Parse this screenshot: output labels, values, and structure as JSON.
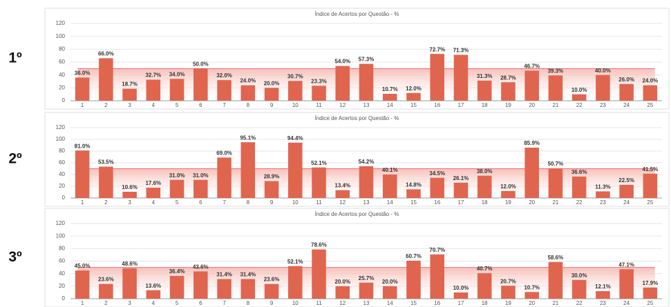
{
  "row_labels": [
    "1º",
    "2º",
    "3º"
  ],
  "chart_data": [
    {
      "type": "bar",
      "title": "Índice de Acertos por Questão - %",
      "color": "#e0654f",
      "reference_line": 50,
      "ylim": [
        0,
        120
      ],
      "yticks": [
        0,
        20,
        40,
        60,
        80,
        100,
        120
      ],
      "grid": true,
      "categories": [
        "1",
        "2",
        "3",
        "4",
        "5",
        "6",
        "7",
        "8",
        "9",
        "10",
        "11",
        "12",
        "13",
        "14",
        "15",
        "16",
        "17",
        "18",
        "19",
        "20",
        "21",
        "22",
        "23",
        "24",
        "25"
      ],
      "values": [
        36.0,
        66.0,
        18.7,
        32.7,
        34.0,
        50.0,
        32.0,
        24.0,
        20.0,
        30.7,
        23.3,
        54.0,
        57.3,
        10.7,
        12.0,
        72.7,
        71.3,
        31.3,
        28.7,
        46.7,
        39.3,
        10.0,
        40.0,
        26.0,
        24.0
      ],
      "value_labels": [
        "36.0%",
        "66.0%",
        "18.7%",
        "32.7%",
        "34.0%",
        "50.0%",
        "32.0%",
        "24.0%",
        "20.0%",
        "30.7%",
        "23.3%",
        "54.0%",
        "57.3%",
        "10.7%",
        "12.0%",
        "72.7%",
        "71.3%",
        "31.3%",
        "28.7%",
        "46.7%",
        "39.3%",
        "10.0%",
        "40.0%",
        "26.0%",
        "24.0%"
      ]
    },
    {
      "type": "bar",
      "title": "Índice de Acertos por Questão - %",
      "color": "#e0654f",
      "reference_line": 50,
      "ylim": [
        0,
        120
      ],
      "yticks": [
        0,
        20,
        40,
        60,
        80,
        100,
        120
      ],
      "grid": true,
      "categories": [
        "1",
        "2",
        "3",
        "4",
        "5",
        "6",
        "7",
        "8",
        "9",
        "10",
        "11",
        "12",
        "13",
        "14",
        "15",
        "16",
        "17",
        "18",
        "19",
        "20",
        "21",
        "22",
        "23",
        "24",
        "25"
      ],
      "values": [
        81.0,
        53.5,
        10.6,
        17.6,
        31.0,
        31.0,
        69.0,
        95.1,
        28.9,
        94.4,
        52.1,
        13.4,
        54.2,
        40.1,
        14.8,
        34.5,
        26.1,
        38.0,
        12.0,
        85.9,
        50.7,
        36.6,
        11.3,
        22.5,
        41.5
      ],
      "value_labels": [
        "81.0%",
        "53.5%",
        "10.6%",
        "17.6%",
        "31.0%",
        "31.0%",
        "69.0%",
        "95.1%",
        "28.9%",
        "94.4%",
        "52.1%",
        "13.4%",
        "54.2%",
        "40.1%",
        "14.8%",
        "34.5%",
        "26.1%",
        "38.0%",
        "12.0%",
        "85.9%",
        "50.7%",
        "36.6%",
        "11.3%",
        "22.5%",
        "41.5%"
      ]
    },
    {
      "type": "bar",
      "title": "Índice de Acertos por Questão - %",
      "color": "#e0654f",
      "reference_line": 50,
      "ylim": [
        0,
        120
      ],
      "yticks": [
        0,
        20,
        40,
        60,
        80,
        100,
        120
      ],
      "grid": true,
      "categories": [
        "1",
        "2",
        "3",
        "4",
        "5",
        "6",
        "7",
        "8",
        "9",
        "10",
        "11",
        "12",
        "13",
        "14",
        "15",
        "16",
        "17",
        "18",
        "19",
        "20",
        "21",
        "22",
        "23",
        "24",
        "25"
      ],
      "values": [
        45.0,
        23.6,
        48.6,
        13.6,
        36.4,
        43.6,
        31.4,
        31.4,
        23.6,
        52.1,
        78.6,
        20.0,
        25.7,
        20.0,
        60.7,
        70.7,
        10.0,
        40.7,
        20.7,
        10.7,
        58.6,
        30.0,
        12.1,
        47.1,
        17.9
      ],
      "value_labels": [
        "45.0%",
        "23.6%",
        "48.6%",
        "13.6%",
        "36.4%",
        "43.6%",
        "31.4%",
        "31.4%",
        "23.6%",
        "52.1%",
        "78.6%",
        "20.0%",
        "25.7%",
        "20.0%",
        "60.7%",
        "70.7%",
        "10.0%",
        "40.7%",
        "20.7%",
        "10.7%",
        "58.6%",
        "30.0%",
        "12.1%",
        "47.1%",
        "17.9%"
      ]
    }
  ]
}
